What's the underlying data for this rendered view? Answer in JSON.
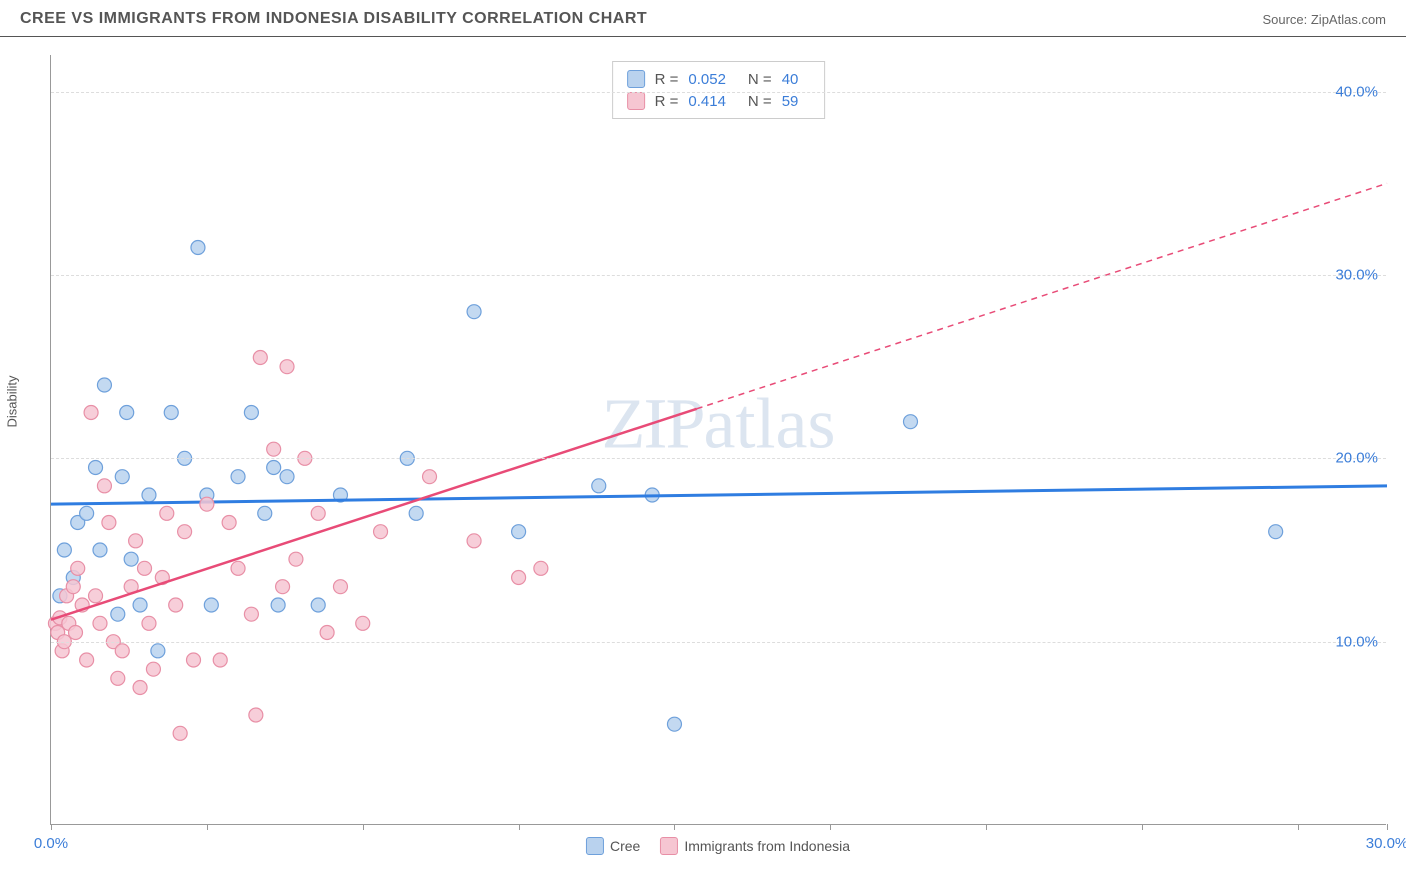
{
  "header": {
    "title": "CREE VS IMMIGRANTS FROM INDONESIA DISABILITY CORRELATION CHART",
    "source": "Source: ZipAtlas.com"
  },
  "watermark": "ZIPatlas",
  "y_axis_label": "Disability",
  "chart": {
    "type": "scatter",
    "xlim": [
      0,
      30
    ],
    "ylim": [
      0,
      42
    ],
    "x_ticks": [
      0,
      3.5,
      7,
      10.5,
      14,
      17.5,
      21,
      24.5,
      28,
      30
    ],
    "x_tick_labels": {
      "0": "0.0%",
      "30": "30.0%"
    },
    "y_gridlines": [
      10,
      20,
      30,
      40
    ],
    "y_tick_labels": {
      "10": "10.0%",
      "20": "20.0%",
      "30": "30.0%",
      "40": "40.0%"
    },
    "grid_color": "#dddddd",
    "axis_color": "#999999",
    "background_color": "#ffffff",
    "series": [
      {
        "name": "Cree",
        "label": "Cree",
        "fill": "#b9d2ee",
        "stroke": "#6ea0db",
        "marker_radius": 7,
        "marker_opacity": 0.85,
        "trend_color": "#2f7de1",
        "trend_width": 3,
        "trend_dash": null,
        "trend": {
          "x1": 0,
          "y1": 17.5,
          "x2": 30,
          "y2": 18.5
        },
        "extrapolate_from": null,
        "R": "0.052",
        "N": "40",
        "points": [
          [
            0.2,
            12.5
          ],
          [
            0.3,
            15.0
          ],
          [
            0.5,
            13.5
          ],
          [
            0.6,
            16.5
          ],
          [
            0.8,
            17.0
          ],
          [
            1.0,
            19.5
          ],
          [
            1.1,
            15.0
          ],
          [
            1.2,
            24.0
          ],
          [
            1.5,
            11.5
          ],
          [
            1.6,
            19.0
          ],
          [
            1.7,
            22.5
          ],
          [
            1.8,
            14.5
          ],
          [
            2.0,
            12.0
          ],
          [
            2.2,
            18.0
          ],
          [
            2.4,
            9.5
          ],
          [
            2.7,
            22.5
          ],
          [
            3.0,
            20.0
          ],
          [
            3.3,
            31.5
          ],
          [
            3.5,
            18.0
          ],
          [
            3.6,
            12.0
          ],
          [
            4.2,
            19.0
          ],
          [
            4.5,
            22.5
          ],
          [
            4.8,
            17.0
          ],
          [
            5.0,
            19.5
          ],
          [
            5.1,
            12.0
          ],
          [
            5.3,
            19.0
          ],
          [
            6.0,
            12.0
          ],
          [
            6.5,
            18.0
          ],
          [
            8.0,
            20.0
          ],
          [
            8.2,
            17.0
          ],
          [
            9.5,
            28.0
          ],
          [
            10.5,
            16.0
          ],
          [
            12.3,
            18.5
          ],
          [
            13.5,
            18.0
          ],
          [
            14.0,
            5.5
          ],
          [
            19.3,
            22.0
          ],
          [
            27.5,
            16.0
          ]
        ]
      },
      {
        "name": "Immigrants from Indonesia",
        "label": "Immigrants from Indonesia",
        "fill": "#f6c6d2",
        "stroke": "#e88fa6",
        "marker_radius": 7,
        "marker_opacity": 0.85,
        "trend_color": "#e84b77",
        "trend_width": 2.5,
        "trend_dash": "6 5",
        "trend": {
          "x1": 0,
          "y1": 11.2,
          "x2": 30,
          "y2": 35.0
        },
        "extrapolate_from": 14.5,
        "R": "0.414",
        "N": "59",
        "points": [
          [
            0.1,
            11.0
          ],
          [
            0.15,
            10.5
          ],
          [
            0.2,
            11.3
          ],
          [
            0.25,
            9.5
          ],
          [
            0.3,
            10.0
          ],
          [
            0.35,
            12.5
          ],
          [
            0.4,
            11.0
          ],
          [
            0.5,
            13.0
          ],
          [
            0.55,
            10.5
          ],
          [
            0.6,
            14.0
          ],
          [
            0.7,
            12.0
          ],
          [
            0.8,
            9.0
          ],
          [
            0.9,
            22.5
          ],
          [
            1.0,
            12.5
          ],
          [
            1.1,
            11.0
          ],
          [
            1.2,
            18.5
          ],
          [
            1.3,
            16.5
          ],
          [
            1.4,
            10.0
          ],
          [
            1.5,
            8.0
          ],
          [
            1.6,
            9.5
          ],
          [
            1.8,
            13.0
          ],
          [
            1.9,
            15.5
          ],
          [
            2.0,
            7.5
          ],
          [
            2.1,
            14.0
          ],
          [
            2.2,
            11.0
          ],
          [
            2.3,
            8.5
          ],
          [
            2.5,
            13.5
          ],
          [
            2.6,
            17.0
          ],
          [
            2.8,
            12.0
          ],
          [
            2.9,
            5.0
          ],
          [
            3.0,
            16.0
          ],
          [
            3.2,
            9.0
          ],
          [
            3.5,
            17.5
          ],
          [
            3.8,
            9.0
          ],
          [
            4.0,
            16.5
          ],
          [
            4.2,
            14.0
          ],
          [
            4.5,
            11.5
          ],
          [
            4.6,
            6.0
          ],
          [
            4.7,
            25.5
          ],
          [
            5.0,
            20.5
          ],
          [
            5.2,
            13.0
          ],
          [
            5.3,
            25.0
          ],
          [
            5.5,
            14.5
          ],
          [
            5.7,
            20.0
          ],
          [
            6.0,
            17.0
          ],
          [
            6.2,
            10.5
          ],
          [
            6.5,
            13.0
          ],
          [
            7.0,
            11.0
          ],
          [
            7.4,
            16.0
          ],
          [
            8.5,
            19.0
          ],
          [
            9.5,
            15.5
          ],
          [
            10.5,
            13.5
          ],
          [
            11.0,
            14.0
          ]
        ]
      }
    ]
  },
  "legend_stats": [
    {
      "swatch_fill": "#b9d2ee",
      "swatch_stroke": "#6ea0db",
      "R": "0.052",
      "N": "40"
    },
    {
      "swatch_fill": "#f6c6d2",
      "swatch_stroke": "#e88fa6",
      "R": "0.414",
      "N": "59"
    }
  ],
  "bottom_legend": [
    {
      "swatch_fill": "#b9d2ee",
      "swatch_stroke": "#6ea0db",
      "label": "Cree"
    },
    {
      "swatch_fill": "#f6c6d2",
      "swatch_stroke": "#e88fa6",
      "label": "Immigrants from Indonesia"
    }
  ]
}
